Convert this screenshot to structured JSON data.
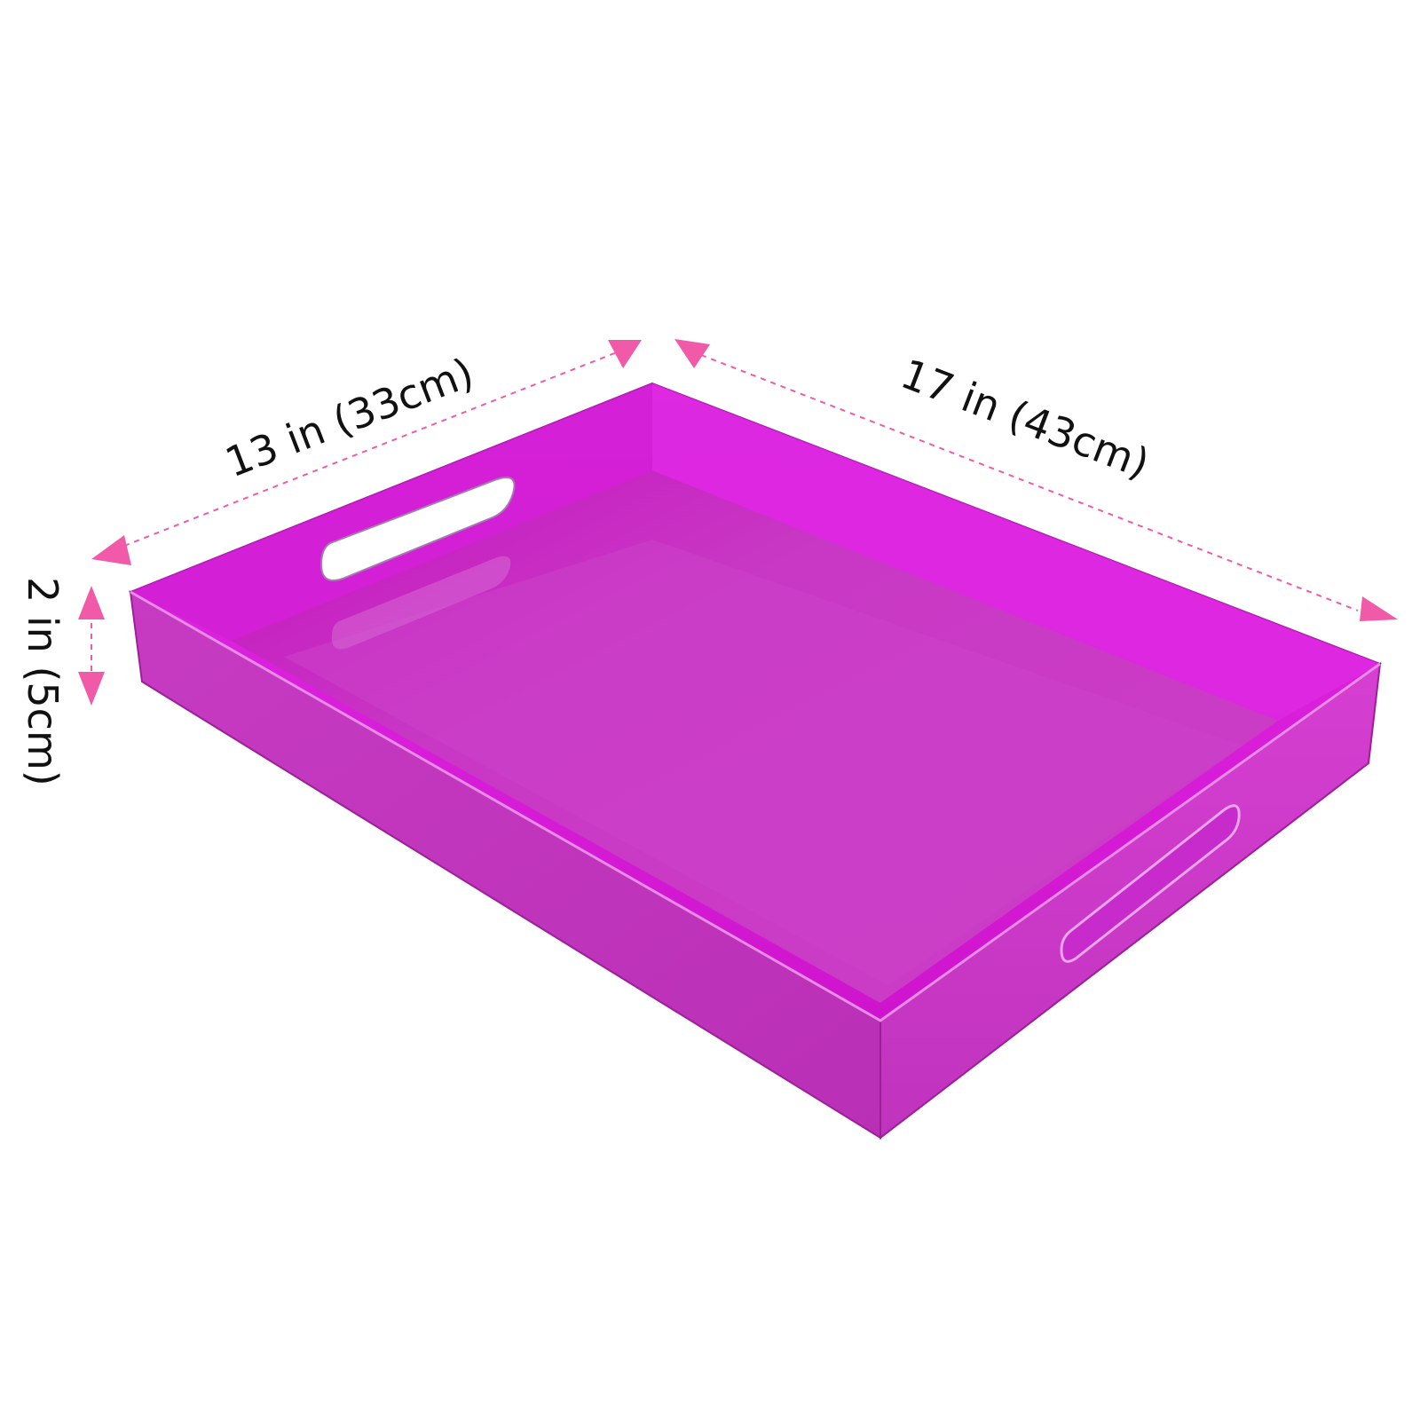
{
  "product": {
    "name": "acrylic serving tray",
    "color": "#cc33c8",
    "rim_color": "#e22ae6",
    "floor_color": "#c93ec4",
    "shadow_color": "#b30fb0",
    "handle_icon": "oval-cutout-handle"
  },
  "dimensions": {
    "width_label": "13 in (33cm)",
    "length_label": "17 in (43cm)",
    "height_label": "2 in (5cm)",
    "arrow_color": "#f05aa8",
    "arrow_icon": "triangle-arrowhead"
  }
}
